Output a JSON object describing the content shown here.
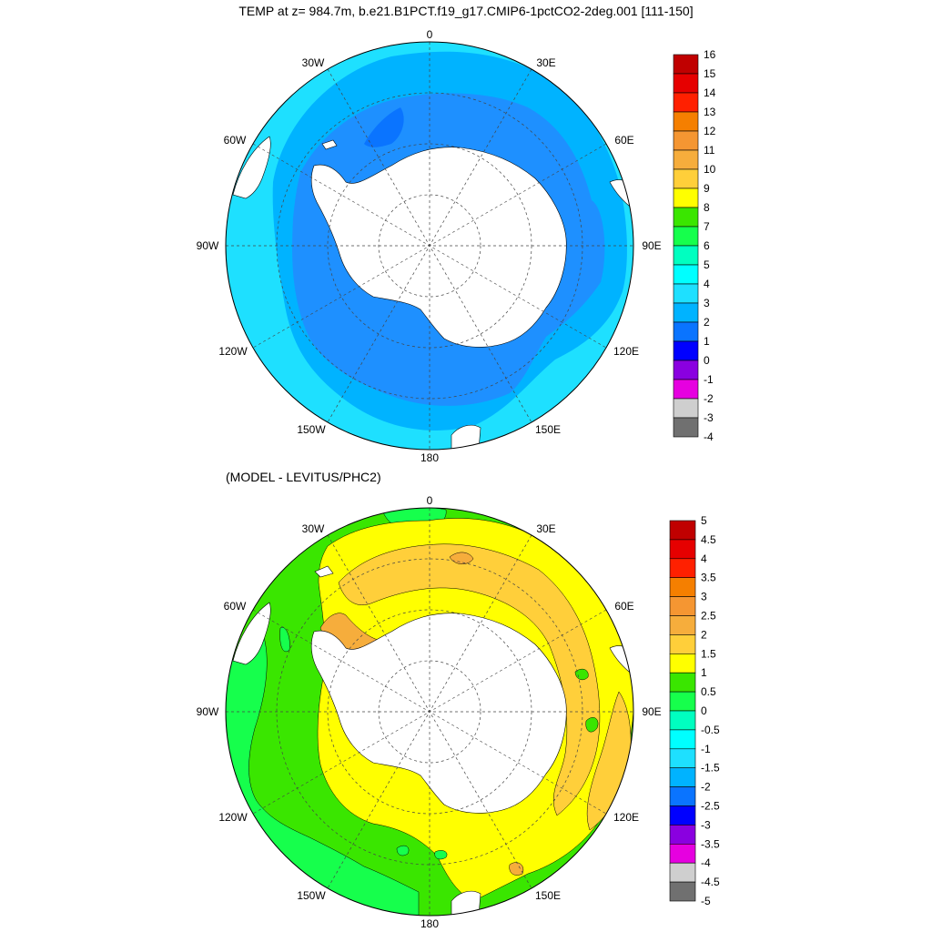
{
  "title": "TEMP at z= 984.7m, b.e21.B1PCT.f19_g17.CMIP6-1pctCO2-2deg.001 [111-150]",
  "subtitle": "(MODEL - LEVITUS/PHC2)",
  "lon_labels": {
    "top": "0",
    "bottom": "180",
    "ne": "30E",
    "nw": "30W",
    "ene": "60E",
    "wnw": "60W",
    "e": "90E",
    "w": "90W",
    "ese": "120E",
    "wsw": "120W",
    "se": "150E",
    "sw": "150W"
  },
  "colorbar_top": {
    "labels": [
      "16",
      "15",
      "14",
      "13",
      "12",
      "11",
      "10",
      "9",
      "8",
      "7",
      "6",
      "5",
      "4",
      "3",
      "2",
      "1",
      "0",
      "-1",
      "-2",
      "-3",
      "-4"
    ],
    "colors": [
      "#c00000",
      "#e60000",
      "#ff2000",
      "#f57f00",
      "#f59632",
      "#f6ad3c",
      "#ffcf3a",
      "#ffff00",
      "#3ae600",
      "#16ff4c",
      "#00ffc0",
      "#00ffff",
      "#1ee0ff",
      "#00b3ff",
      "#0a74ff",
      "#0000ff",
      "#8a00e0",
      "#e600e0",
      "#cfcfcf",
      "#707070"
    ]
  },
  "colorbar_bottom": {
    "labels": [
      "5",
      "4.5",
      "4",
      "3.5",
      "3",
      "2.5",
      "2",
      "1.5",
      "1",
      "0.5",
      "0",
      "-0.5",
      "-1",
      "-1.5",
      "-2",
      "-2.5",
      "-3",
      "-3.5",
      "-4",
      "-4.5",
      "-5"
    ],
    "colors": [
      "#c00000",
      "#e60000",
      "#ff2000",
      "#f57f00",
      "#f59632",
      "#f6ad3c",
      "#ffcf3a",
      "#ffff00",
      "#3ae600",
      "#16ff4c",
      "#00ffc0",
      "#00ffff",
      "#1ee0ff",
      "#00b3ff",
      "#0a74ff",
      "#0000ff",
      "#8a00e0",
      "#e600e0",
      "#cfcfcf",
      "#707070"
    ]
  }
}
